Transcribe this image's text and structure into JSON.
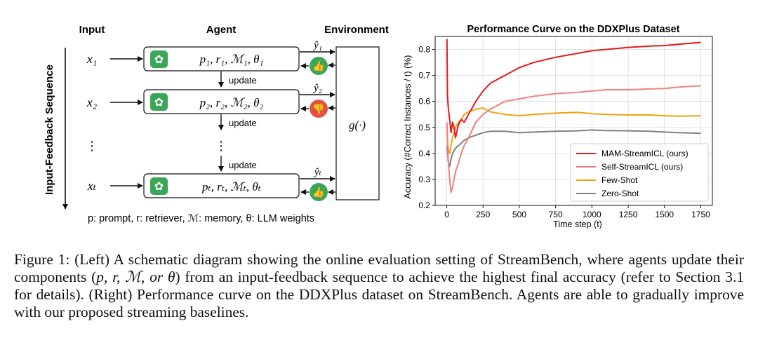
{
  "diagram": {
    "header_input": "Input",
    "header_agent": "Agent",
    "header_environment": "Environment",
    "sequence_label": "Input-Feedback Sequence",
    "rows": [
      {
        "input": "x₁",
        "params": "p₁, r₁, ℳ₁, θ₁",
        "feedback_label": "ŷ₁",
        "feedback": "thumbs-up"
      },
      {
        "input": "x₂",
        "params": "p₂, r₂, ℳ₂, θ₂",
        "feedback_label": "ŷ₂",
        "feedback": "thumbs-down"
      },
      {
        "input": "xₜ",
        "params": "pₜ, rₜ, ℳₜ, θₜ",
        "feedback_label": "ŷₜ",
        "feedback": "thumbs-up"
      }
    ],
    "update_label": "update",
    "ellipsis": "⋮",
    "env_function": "g(·)",
    "legend_text": "p: prompt, r: retriever, ℳ: memory, θ: LLM weights",
    "colors": {
      "thumbs_up": "#3aa757",
      "thumbs_down": "#e2533f",
      "agent_icon": "#3aa757"
    }
  },
  "chart_data": {
    "type": "line",
    "title": "Performance Curve on the DDXPlus Dataset",
    "xlabel": "Time step (t)",
    "ylabel": "Accuracy (#Correct Instances / t) (%)",
    "xlim": [
      -80,
      1830
    ],
    "ylim": [
      0.2,
      0.85
    ],
    "xticks": [
      0,
      250,
      500,
      750,
      1000,
      1250,
      1500,
      1750
    ],
    "yticks": [
      0.2,
      0.3,
      0.4,
      0.5,
      0.6,
      0.7,
      0.8
    ],
    "grid": true,
    "legend_position": "lower-right",
    "series": [
      {
        "name": "MAM-StreamICL (ours)",
        "color": "#e31a1c",
        "x": [
          1,
          5,
          10,
          20,
          30,
          40,
          50,
          60,
          80,
          100,
          120,
          150,
          200,
          250,
          300,
          400,
          500,
          600,
          750,
          900,
          1000,
          1100,
          1250,
          1400,
          1500,
          1600,
          1750
        ],
        "y": [
          0.84,
          0.62,
          0.58,
          0.53,
          0.48,
          0.52,
          0.5,
          0.46,
          0.51,
          0.53,
          0.52,
          0.55,
          0.6,
          0.64,
          0.67,
          0.7,
          0.73,
          0.75,
          0.77,
          0.785,
          0.795,
          0.8,
          0.808,
          0.813,
          0.815,
          0.82,
          0.827
        ]
      },
      {
        "name": "Self-StreamICL (ours)",
        "color": "#f08080",
        "x": [
          1,
          5,
          10,
          20,
          30,
          40,
          50,
          60,
          80,
          100,
          120,
          150,
          200,
          250,
          300,
          400,
          500,
          600,
          750,
          900,
          1000,
          1100,
          1250,
          1400,
          1500,
          1600,
          1750
        ],
        "y": [
          0.52,
          0.45,
          0.38,
          0.3,
          0.25,
          0.27,
          0.3,
          0.33,
          0.36,
          0.4,
          0.43,
          0.46,
          0.52,
          0.55,
          0.57,
          0.6,
          0.61,
          0.62,
          0.63,
          0.635,
          0.64,
          0.645,
          0.645,
          0.648,
          0.65,
          0.655,
          0.66
        ]
      },
      {
        "name": "Few-Shot",
        "color": "#f0a30a",
        "x": [
          1,
          5,
          10,
          20,
          30,
          40,
          50,
          60,
          80,
          100,
          120,
          150,
          200,
          250,
          300,
          400,
          500,
          600,
          750,
          900,
          1000,
          1100,
          1250,
          1400,
          1500,
          1600,
          1750
        ],
        "y": [
          0.48,
          0.45,
          0.42,
          0.4,
          0.43,
          0.46,
          0.48,
          0.5,
          0.52,
          0.53,
          0.55,
          0.56,
          0.57,
          0.575,
          0.56,
          0.55,
          0.545,
          0.55,
          0.555,
          0.558,
          0.553,
          0.55,
          0.548,
          0.548,
          0.545,
          0.543,
          0.545
        ]
      },
      {
        "name": "Zero-Shot",
        "color": "#808080",
        "x": [
          1,
          5,
          10,
          20,
          30,
          40,
          50,
          60,
          80,
          100,
          120,
          150,
          200,
          250,
          300,
          400,
          500,
          600,
          750,
          900,
          1000,
          1100,
          1250,
          1400,
          1500,
          1600,
          1750
        ],
        "y": [
          0.43,
          0.4,
          0.37,
          0.35,
          0.38,
          0.4,
          0.41,
          0.42,
          0.43,
          0.44,
          0.45,
          0.46,
          0.47,
          0.48,
          0.485,
          0.485,
          0.48,
          0.482,
          0.485,
          0.487,
          0.49,
          0.488,
          0.487,
          0.485,
          0.482,
          0.48,
          0.477
        ]
      }
    ]
  },
  "caption": {
    "part1": "Figure 1: (Left) A schematic diagram showing the online evaluation setting of StreamBench, where agents update their components (",
    "math": "p, r, ℳ, or θ",
    "part2": ") from an input-feedback sequence to achieve the highest final accuracy (refer to Section 3.1 for details). (Right) Performance curve on the DDXPlus dataset on StreamBench. Agents are able to gradually improve with our proposed streaming baselines."
  }
}
